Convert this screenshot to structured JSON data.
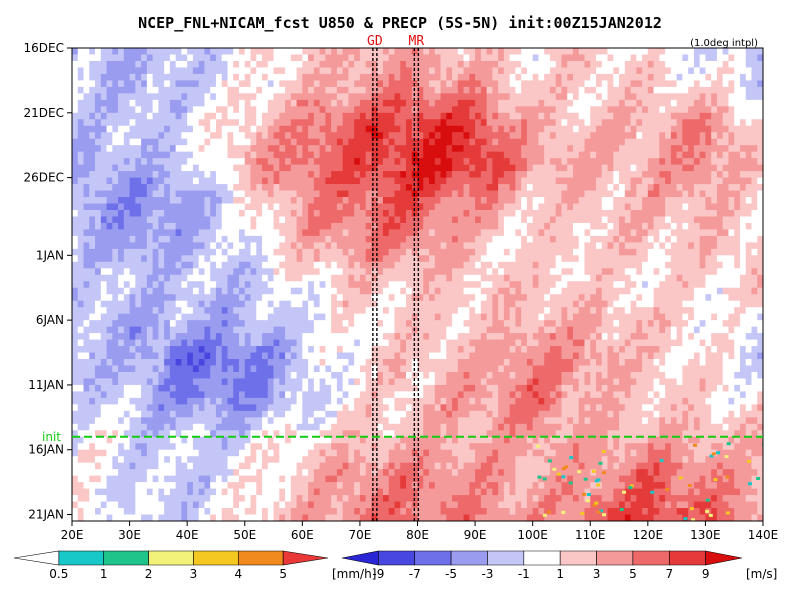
{
  "chart_data": {
    "type": "heatmap",
    "title": "NCEP_FNL+NICAM_fcst U850 & PRECP (5S-5N) init:00Z15JAN2012",
    "note": "(1.0deg intpl)",
    "xlabel": "",
    "ylabel": "",
    "x_ticks": [
      "20E",
      "30E",
      "40E",
      "50E",
      "60E",
      "70E",
      "80E",
      "90E",
      "100E",
      "110E",
      "120E",
      "130E",
      "140E"
    ],
    "x_range_deg": [
      20,
      140
    ],
    "y_ticks": [
      "16DEC",
      "21DEC",
      "26DEC",
      "1JAN",
      "6JAN",
      "11JAN",
      "16JAN",
      "21JAN"
    ],
    "y_range_days_from_16DEC": [
      0,
      36.5
    ],
    "markers": [
      {
        "label": "GD",
        "lon": 72.6
      },
      {
        "label": "MR",
        "lon": 79.8
      }
    ],
    "init_label": "init",
    "init_day_from_16DEC": 30,
    "u850_colorbar": {
      "labels": [
        "-9",
        "-7",
        "-5",
        "-3",
        "-1",
        "1",
        "3",
        "5",
        "7",
        "9"
      ],
      "unit": "[m/s]",
      "colors": [
        "#2a26d6",
        "#4848e0",
        "#6e70ea",
        "#9a9cf0",
        "#c4c6f7",
        "#ffffff",
        "#fbc6c6",
        "#f59a9a",
        "#ee6a6a",
        "#e43a3a",
        "#d80e0e"
      ]
    },
    "precip_colorbar": {
      "labels": [
        "0.5",
        "1",
        "2",
        "3",
        "4",
        "5"
      ],
      "unit": "[mm/h]",
      "colors": [
        "#ffffff",
        "#18c8c8",
        "#1ec48a",
        "#f2f27a",
        "#f4c820",
        "#f08a1e",
        "#e83838"
      ]
    },
    "u850_field_rows_lat_avg": {
      "lon": [
        20,
        30,
        40,
        50,
        60,
        70,
        80,
        90,
        100,
        110,
        120,
        130,
        140
      ],
      "days": [
        0,
        3,
        6,
        9,
        12,
        15,
        18,
        21,
        24,
        27,
        30,
        33,
        36
      ],
      "values": [
        [
          -2,
          -3,
          -2,
          0,
          2,
          3,
          3,
          2,
          1,
          2,
          1,
          -1,
          -2
        ],
        [
          -1,
          -3,
          -2,
          0,
          2,
          4,
          5,
          4,
          1,
          2,
          2,
          1,
          -1
        ],
        [
          -2,
          -2,
          -1,
          2,
          5,
          7,
          8,
          8,
          3,
          2,
          3,
          5,
          1
        ],
        [
          -3,
          -3,
          -2,
          3,
          6,
          7,
          9,
          9,
          4,
          3,
          3,
          5,
          2
        ],
        [
          -3,
          -5,
          -4,
          0,
          4,
          6,
          7,
          4,
          2,
          2,
          3,
          3,
          1
        ],
        [
          -2,
          -4,
          -3,
          -1,
          3,
          5,
          5,
          2,
          1,
          2,
          2,
          2,
          2
        ],
        [
          -1,
          -2,
          -2,
          -2,
          0,
          2,
          2,
          2,
          2,
          1,
          1,
          1,
          2
        ],
        [
          -2,
          -3,
          -3,
          -3,
          -1,
          1,
          2,
          2,
          3,
          3,
          2,
          1,
          -1
        ],
        [
          -2,
          -3,
          -6,
          -6,
          -2,
          1,
          2,
          3,
          5,
          4,
          2,
          1,
          -1
        ],
        [
          -1,
          -2,
          -5,
          -5,
          -2,
          1,
          2,
          4,
          6,
          3,
          2,
          1,
          1
        ],
        [
          0,
          -1,
          -2,
          -1,
          1,
          2,
          3,
          3,
          4,
          3,
          3,
          3,
          2
        ],
        [
          0,
          -1,
          -2,
          0,
          2,
          5,
          5,
          4,
          3,
          4,
          6,
          5,
          3
        ],
        [
          1,
          -1,
          -2,
          1,
          3,
          5,
          6,
          5,
          4,
          6,
          8,
          6,
          4
        ]
      ]
    }
  }
}
